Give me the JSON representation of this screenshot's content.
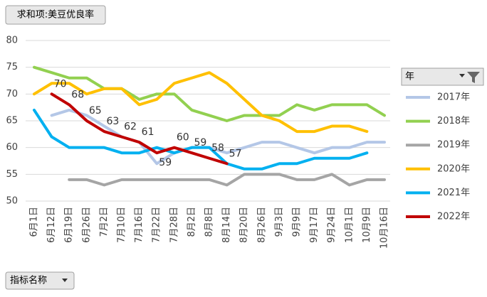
{
  "chart_data": {
    "type": "line",
    "value_button": "求和项:美豆优良率",
    "legend_title": "年",
    "axis_button": "指标名称",
    "categories": [
      "6月1日",
      "6月12日",
      "6月19日",
      "6月26日",
      "7月2日",
      "7月10日",
      "7月16日",
      "7月22日",
      "7月28日",
      "8月2日",
      "8月8日",
      "8月14日",
      "8月20日",
      "8月26日",
      "9月3日",
      "9月9日",
      "9月17日",
      "9月24日",
      "10月1日",
      "10月9日",
      "10月16日"
    ],
    "ylim": [
      50,
      80
    ],
    "yticks": [
      50,
      55,
      60,
      65,
      70,
      75,
      80
    ],
    "grid": true,
    "legend": "right",
    "series": [
      {
        "name": "2017年",
        "color": "#b4c7e7",
        "values": [
          null,
          66,
          67,
          66,
          64,
          62,
          61,
          57,
          59,
          60,
          60,
          59,
          60,
          61,
          61,
          60,
          59,
          60,
          60,
          61,
          61
        ]
      },
      {
        "name": "2018年",
        "color": "#92d050",
        "values": [
          75,
          74,
          73,
          73,
          71,
          71,
          69,
          70,
          70,
          67,
          66,
          65,
          66,
          66,
          66,
          68,
          67,
          68,
          68,
          68,
          66
        ]
      },
      {
        "name": "2019年",
        "color": "#a5a5a5",
        "values": [
          null,
          null,
          54,
          54,
          53,
          54,
          54,
          54,
          54,
          54,
          54,
          53,
          55,
          55,
          55,
          54,
          54,
          55,
          53,
          54,
          54
        ]
      },
      {
        "name": "2020年",
        "color": "#ffc000",
        "values": [
          70,
          72,
          72,
          70,
          71,
          71,
          68,
          69,
          72,
          73,
          74,
          72,
          69,
          66,
          65,
          63,
          63,
          64,
          64,
          63,
          null
        ]
      },
      {
        "name": "2021年",
        "color": "#00b0f0",
        "values": [
          67,
          62,
          60,
          60,
          60,
          59,
          59,
          60,
          59,
          60,
          60,
          57,
          56,
          56,
          57,
          57,
          58,
          58,
          58,
          59,
          null
        ]
      },
      {
        "name": "2022年",
        "color": "#c00000",
        "data_labels": true,
        "values": [
          null,
          70,
          68,
          65,
          63,
          62,
          61,
          59,
          60,
          59,
          58,
          57,
          null,
          null,
          null,
          null,
          null,
          null,
          null,
          null,
          null
        ]
      }
    ]
  }
}
